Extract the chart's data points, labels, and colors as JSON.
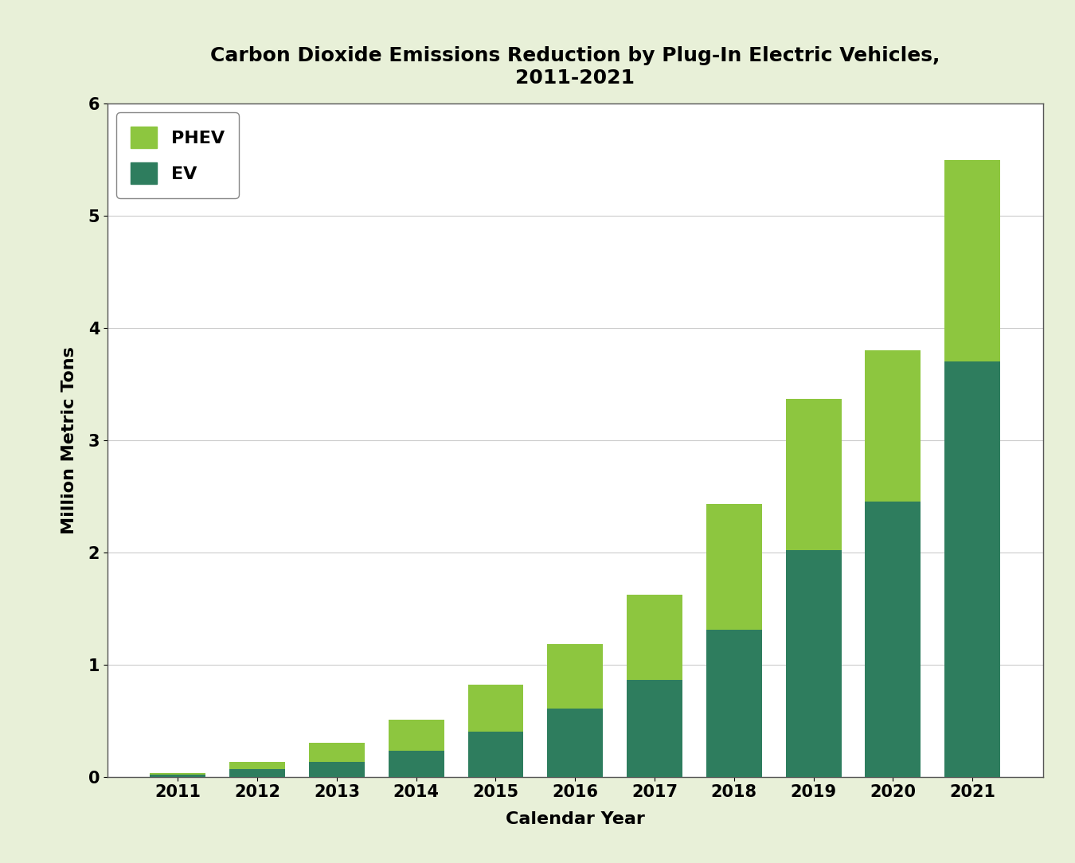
{
  "title": "Carbon Dioxide Emissions Reduction by Plug-In Electric Vehicles,\n2011-2021",
  "xlabel": "Calendar Year",
  "ylabel": "Million Metric Tons",
  "years": [
    "2011",
    "2012",
    "2013",
    "2014",
    "2015",
    "2016",
    "2017",
    "2018",
    "2019",
    "2020",
    "2021"
  ],
  "ev_values": [
    0.02,
    0.07,
    0.13,
    0.23,
    0.4,
    0.61,
    0.86,
    1.31,
    2.02,
    2.45,
    3.7
  ],
  "phev_values": [
    0.01,
    0.06,
    0.17,
    0.28,
    0.42,
    0.57,
    0.76,
    1.12,
    1.35,
    1.35,
    1.8
  ],
  "ev_color": "#2E7D5E",
  "phev_color": "#8DC63F",
  "background_outer": "#E8F0D8",
  "background_inner": "#FFFFFF",
  "ylim": [
    0,
    6
  ],
  "yticks": [
    0,
    1,
    2,
    3,
    4,
    5,
    6
  ],
  "title_fontsize": 18,
  "axis_label_fontsize": 16,
  "tick_fontsize": 15,
  "legend_fontsize": 16,
  "bar_width": 0.7
}
